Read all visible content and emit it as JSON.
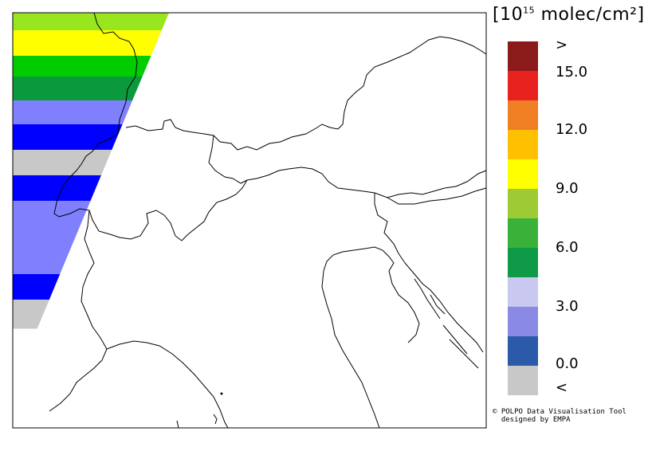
{
  "legend": {
    "unit_prefix": "[10",
    "unit_exponent": "15",
    "unit_suffix": " molec/cm²]",
    "tick_labels": [
      ">",
      "15.0",
      "12.0",
      "9.0",
      "6.0",
      "3.0",
      "0.0",
      "<"
    ],
    "colors_top_to_bottom": [
      "#8b1a1a",
      "#e8221e",
      "#f07e22",
      "#ffc000",
      "#ffff00",
      "#9ecb34",
      "#3ab23a",
      "#0f9a48",
      "#c8c8f0",
      "#8a8ae6",
      "#2b5aa8",
      "#c8c8c8"
    ]
  },
  "swath": {
    "bands_top_to_bottom": [
      "#9ae61e",
      "#ffff00",
      "#00cc00",
      "#0a9a3c",
      "#8080ff",
      "#0000ff",
      "#c8c8c8",
      "#0000ff",
      "#8080ff",
      "#0000ff",
      "#c8c8c8"
    ]
  },
  "credit": {
    "line1": "© POLPO Data Visualisation Tool",
    "line2": "  designed by EMPA"
  }
}
